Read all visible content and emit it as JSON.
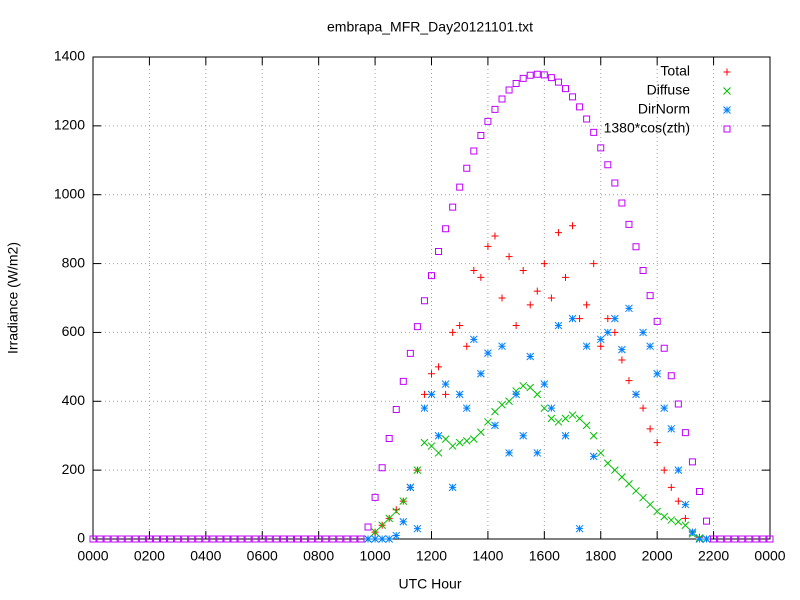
{
  "chart_data": {
    "type": "scatter",
    "title": "embrapa_MFR_Day20121101.txt",
    "xlabel": "UTC Hour",
    "ylabel": "Irradiance (W/m2)",
    "xlim": [
      0,
      24
    ],
    "ylim": [
      0,
      1400
    ],
    "xticks": [
      {
        "value": 0,
        "label": "0000"
      },
      {
        "value": 2,
        "label": "0200"
      },
      {
        "value": 4,
        "label": "0400"
      },
      {
        "value": 6,
        "label": "0600"
      },
      {
        "value": 8,
        "label": "0800"
      },
      {
        "value": 10,
        "label": "1000"
      },
      {
        "value": 12,
        "label": "1200"
      },
      {
        "value": 14,
        "label": "1400"
      },
      {
        "value": 16,
        "label": "1600"
      },
      {
        "value": 18,
        "label": "1800"
      },
      {
        "value": 20,
        "label": "2000"
      },
      {
        "value": 22,
        "label": "2200"
      },
      {
        "value": 24,
        "label": "0000"
      }
    ],
    "yticks": [
      0,
      200,
      400,
      600,
      800,
      1000,
      1200,
      1400
    ],
    "grid": true,
    "legend": "top-right",
    "series": [
      {
        "name": "Total",
        "color": "#ff0000",
        "marker": "plus",
        "x": [
          9.75,
          10,
          10.25,
          10.5,
          10.75,
          11,
          11.25,
          11.5,
          11.75,
          12,
          12.25,
          12.5,
          12.75,
          13,
          13.25,
          13.5,
          13.75,
          14,
          14.25,
          14.5,
          14.75,
          15,
          15.25,
          15.5,
          15.75,
          16,
          16.25,
          16.5,
          16.75,
          17,
          17.25,
          17.5,
          17.75,
          18,
          18.25,
          18.5,
          18.75,
          19,
          19.25,
          19.5,
          19.75,
          20,
          20.25,
          20.5,
          20.75,
          21,
          21.25,
          21.5,
          21.75
        ],
        "values": [
          0,
          20,
          40,
          60,
          85,
          110,
          150,
          200,
          420,
          480,
          500,
          420,
          600,
          620,
          560,
          780,
          760,
          850,
          880,
          700,
          820,
          620,
          780,
          680,
          720,
          800,
          700,
          890,
          760,
          910,
          640,
          680,
          800,
          560,
          640,
          600,
          520,
          460,
          420,
          380,
          320,
          280,
          200,
          150,
          110,
          60,
          20,
          5,
          0
        ]
      },
      {
        "name": "Diffuse",
        "color": "#00c000",
        "marker": "cross",
        "x": [
          9.75,
          10,
          10.25,
          10.5,
          10.75,
          11,
          11.25,
          11.5,
          11.75,
          12,
          12.25,
          12.5,
          12.75,
          13,
          13.25,
          13.5,
          13.75,
          14,
          14.25,
          14.5,
          14.75,
          15,
          15.25,
          15.5,
          15.75,
          16,
          16.25,
          16.5,
          16.75,
          17,
          17.25,
          17.5,
          17.75,
          18,
          18.25,
          18.5,
          18.75,
          19,
          19.25,
          19.5,
          19.75,
          20,
          20.25,
          20.5,
          20.75,
          21,
          21.25,
          21.5,
          21.75
        ],
        "values": [
          0,
          20,
          40,
          60,
          80,
          110,
          150,
          200,
          280,
          270,
          250,
          290,
          270,
          280,
          285,
          290,
          310,
          340,
          370,
          390,
          400,
          430,
          445,
          440,
          420,
          380,
          350,
          340,
          350,
          360,
          350,
          330,
          300,
          250,
          220,
          200,
          180,
          160,
          140,
          120,
          100,
          80,
          65,
          55,
          50,
          40,
          15,
          3,
          0
        ]
      },
      {
        "name": "DirNorm",
        "color": "#0080ff",
        "marker": "star",
        "x": [
          9.75,
          10,
          10.25,
          10.5,
          10.75,
          11,
          11.25,
          11.5,
          11.75,
          12,
          12.25,
          12.5,
          12.75,
          13,
          13.25,
          13.5,
          13.75,
          14,
          14.25,
          14.5,
          14.75,
          15,
          15.25,
          15.5,
          15.75,
          16,
          16.25,
          16.5,
          16.75,
          17,
          17.25,
          17.5,
          17.75,
          18,
          18.25,
          18.5,
          18.75,
          19,
          19.25,
          19.5,
          19.75,
          20,
          20.25,
          20.5,
          20.75,
          21,
          21.25,
          21.5,
          21.75
        ],
        "values": [
          0,
          0,
          0,
          0,
          10,
          50,
          150,
          30,
          380,
          420,
          300,
          450,
          150,
          420,
          380,
          580,
          480,
          540,
          330,
          560,
          250,
          420,
          300,
          530,
          250,
          450,
          380,
          620,
          300,
          640,
          30,
          560,
          240,
          580,
          600,
          640,
          550,
          670,
          420,
          600,
          560,
          480,
          380,
          320,
          200,
          100,
          20,
          0,
          0
        ]
      },
      {
        "name": "1380*cos(zth)",
        "color": "#c000ff",
        "marker": "square",
        "x": [
          0,
          0.25,
          0.5,
          0.75,
          1,
          1.25,
          1.5,
          1.75,
          2,
          2.25,
          2.5,
          2.75,
          3,
          3.25,
          3.5,
          3.75,
          4,
          4.25,
          4.5,
          4.75,
          5,
          5.25,
          5.5,
          5.75,
          6,
          6.25,
          6.5,
          6.75,
          7,
          7.25,
          7.5,
          7.75,
          8,
          8.25,
          8.5,
          8.75,
          9,
          9.25,
          9.5,
          9.75,
          10,
          10.25,
          10.5,
          10.75,
          11,
          11.25,
          11.5,
          11.75,
          12,
          12.25,
          12.5,
          12.75,
          13,
          13.25,
          13.5,
          13.75,
          14,
          14.25,
          14.5,
          14.75,
          15,
          15.25,
          15.5,
          15.75,
          16,
          16.25,
          16.5,
          16.75,
          17,
          17.25,
          17.5,
          17.75,
          18,
          18.25,
          18.5,
          18.75,
          19,
          19.25,
          19.5,
          19.75,
          20,
          20.25,
          20.5,
          20.75,
          21,
          21.25,
          21.5,
          21.75,
          22,
          22.25,
          22.5,
          22.75,
          23,
          23.25,
          23.5,
          23.75,
          24
        ],
        "values": [
          0,
          0,
          0,
          0,
          0,
          0,
          0,
          0,
          0,
          0,
          0,
          0,
          0,
          0,
          0,
          0,
          0,
          0,
          0,
          0,
          0,
          0,
          0,
          0,
          0,
          0,
          0,
          0,
          0,
          0,
          0,
          0,
          0,
          0,
          0,
          0,
          0,
          0,
          0,
          35,
          121,
          207,
          292,
          376,
          458,
          539,
          617,
          692,
          765,
          835,
          901,
          964,
          1022,
          1077,
          1127,
          1172,
          1213,
          1248,
          1278,
          1304,
          1323,
          1338,
          1347,
          1350,
          1348,
          1340,
          1327,
          1308,
          1284,
          1255,
          1220,
          1181,
          1136,
          1087,
          1034,
          976,
          914,
          849,
          780,
          707,
          632,
          554,
          474,
          392,
          309,
          224,
          138,
          52,
          0,
          0,
          0,
          0,
          0,
          0,
          0,
          0,
          0
        ]
      }
    ]
  }
}
